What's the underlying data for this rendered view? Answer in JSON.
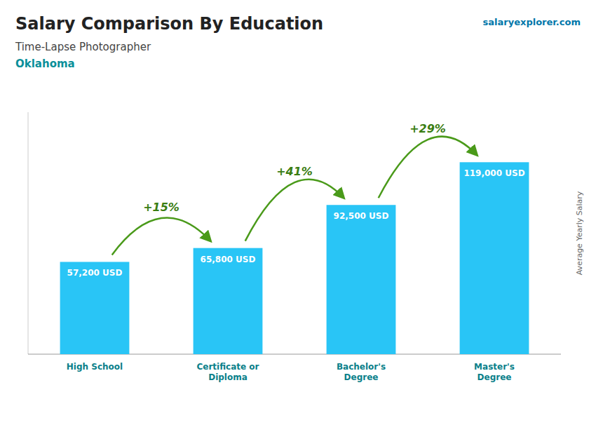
{
  "chart_data": {
    "type": "bar",
    "title": "Salary Comparison By Education",
    "subtitle": "Time-Lapse Photographer",
    "location": "Oklahoma",
    "source": "salaryexplorer.com",
    "categories": [
      "High School",
      "Certificate or\nDiploma",
      "Bachelor's\nDegree",
      "Master's\nDegree"
    ],
    "values": [
      57200,
      65800,
      92500,
      119000
    ],
    "value_labels": [
      "57,200 USD",
      "65,800 USD",
      "92,500 USD",
      "119,000 USD"
    ],
    "data_labels": true,
    "color": "#29C5F6",
    "ylabel": "Average Yearly Salary",
    "ylim": [
      0,
      150000
    ],
    "grid": false,
    "tick_labels": "x",
    "annotations": [
      {
        "text": "+15%",
        "from": 0,
        "to": 1
      },
      {
        "text": "+41%",
        "from": 1,
        "to": 2
      },
      {
        "text": "+29%",
        "from": 2,
        "to": 3
      }
    ]
  }
}
